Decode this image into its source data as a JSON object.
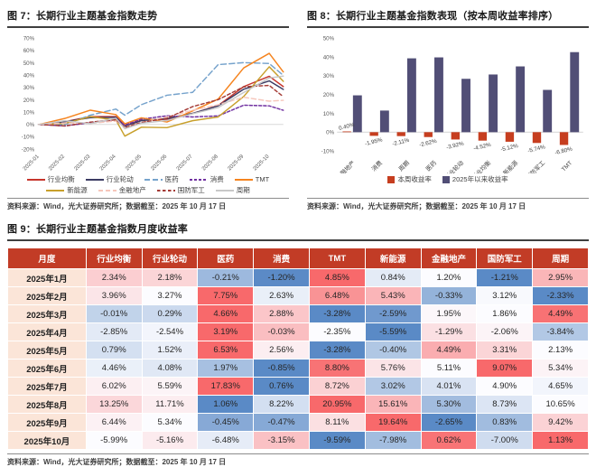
{
  "figure7": {
    "title": "图 7：长期行业主题基金指数走势",
    "source": "资料来源：Wind，光大证券研究所；数据截至：2025 年 10 月 17 日"
  },
  "figure8": {
    "title": "图 8：长期行业主题基金指数表现（按本周收益率排序）",
    "source": "资料来源：Wind，光大证券研究所；数据截至：2025 年 10 月 17 日"
  },
  "figure9": {
    "title": "图 9：长期行业主题基金指数月度收益率",
    "source": "资料来源：Wind，光大证券研究所；数据截至：2025 年 10 月 17 日"
  },
  "colors": {
    "header_red": "#C23C26",
    "month_col_bg": "#FBE5D8",
    "bar_week_red": "#C63E1F",
    "bar_ytd_navy": "#514E76",
    "axis_text": "#595959",
    "zero_line": "#d9d9d9"
  },
  "chart_data": [
    {
      "id": "figure7",
      "type": "line",
      "title": "长期行业主题基金指数走势",
      "ylim": [
        -20,
        70
      ],
      "yticks": [
        70,
        60,
        50,
        40,
        30,
        20,
        10,
        0,
        -10,
        -20
      ],
      "xticklabels": [
        "2025-01",
        "2025-02",
        "2025-03",
        "2025-04",
        "2025-05",
        "2025-06",
        "2025-07",
        "2025-08",
        "2025-09",
        "2025-10"
      ],
      "x": [
        0,
        1,
        2,
        3,
        3.35,
        4,
        5,
        6,
        7,
        8,
        9,
        9.55
      ],
      "series": [
        {
          "name": "行业均衡",
          "color": "#C6352C",
          "dash": "",
          "values": [
            0,
            2.3,
            6.4,
            6.4,
            -1.0,
            3.4,
            4.2,
            8.8,
            15.4,
            30.7,
            39.1,
            30.7
          ]
        },
        {
          "name": "行业轮动",
          "color": "#3B3B63",
          "dash": "",
          "values": [
            0,
            2.2,
            5.5,
            5.8,
            -1.5,
            3.1,
            4.7,
            9.0,
            15.1,
            28.6,
            35.4,
            28.4
          ]
        },
        {
          "name": "医药",
          "color": "#76A3CC",
          "dash": "6 3",
          "values": [
            0,
            -0.2,
            7.5,
            12.5,
            7.5,
            16.1,
            23.7,
            26.1,
            48.6,
            50.2,
            49.5,
            39.8
          ]
        },
        {
          "name": "消费",
          "color": "#7030A0",
          "dash": "3 2",
          "values": [
            0,
            -1.2,
            1.4,
            4.3,
            -0.5,
            4.3,
            7.0,
            6.1,
            6.9,
            15.6,
            15.1,
            11.5
          ]
        },
        {
          "name": "TMT",
          "color": "#F5841F",
          "dash": "",
          "values": [
            0,
            4.9,
            11.6,
            8.0,
            0.5,
            5.4,
            2.0,
            11.0,
            20.6,
            45.9,
            57.7,
            42.6
          ]
        },
        {
          "name": "新能源",
          "color": "#C8A02C",
          "dash": "",
          "values": [
            0,
            0.8,
            6.3,
            3.6,
            -9.5,
            -2.2,
            -2.6,
            3.0,
            6.1,
            22.7,
            46.8,
            35.0
          ]
        },
        {
          "name": "金融地产",
          "color": "#F6C6BB",
          "dash": "5 3",
          "values": [
            0,
            1.2,
            0.9,
            2.8,
            -2.0,
            1.5,
            6.1,
            11.5,
            16.0,
            22.1,
            18.9,
            19.6
          ]
        },
        {
          "name": "国防军工",
          "color": "#A43B36",
          "dash": "3.5 2.5",
          "values": [
            0,
            -1.2,
            1.9,
            3.8,
            -2.5,
            1.6,
            5.0,
            14.5,
            20.1,
            30.6,
            31.7,
            22.5
          ]
        },
        {
          "name": "周期",
          "color": "#C8C8C8",
          "dash": "",
          "values": [
            0,
            3.0,
            0.6,
            5.1,
            -3.5,
            1.0,
            3.2,
            8.7,
            13.7,
            25.9,
            37.7,
            39.3
          ]
        }
      ],
      "legend_rows": [
        [
          "行业均衡",
          "行业轮动",
          "医药",
          "消费",
          "TMT"
        ],
        [
          "新能源",
          "金融地产",
          "国防军工",
          "周期"
        ]
      ]
    },
    {
      "id": "figure8",
      "type": "bar",
      "title": "长期行业主题基金指数表现（按本周收益率排序）",
      "ylim": [
        -10,
        50
      ],
      "yticks": [
        50,
        40,
        30,
        20,
        10,
        0,
        -10
      ],
      "categories": [
        "金融地产",
        "消费",
        "周期",
        "医药",
        "行业轮动",
        "行业均衡",
        "新能源",
        "国防军工",
        "TMT"
      ],
      "series": [
        {
          "name": "本周收益率",
          "color": "#C63E1F",
          "values": [
            0.4,
            -1.95,
            -2.11,
            -2.62,
            -3.92,
            -4.52,
            -5.12,
            -5.74,
            -6.8
          ],
          "labels": [
            "0.40%",
            "-1.95%",
            "-2.11%",
            "-2.62%",
            "-3.92%",
            "-4.52%",
            "-5.12%",
            "-5.74%",
            "-6.80%"
          ]
        },
        {
          "name": "2025年以来收益率",
          "color": "#514E76",
          "values": [
            19.6,
            11.5,
            39.3,
            39.8,
            28.4,
            30.7,
            35.0,
            22.5,
            42.6
          ]
        }
      ],
      "legend_position": "bottom"
    },
    {
      "id": "figure9",
      "type": "table",
      "columns": [
        "月度",
        "行业均衡",
        "行业轮动",
        "医药",
        "消费",
        "TMT",
        "新能源",
        "金融地产",
        "国防军工",
        "周期"
      ],
      "rows": [
        {
          "month": "2025年1月",
          "values": [
            2.34,
            2.18,
            -0.21,
            -1.2,
            4.85,
            0.84,
            1.2,
            -1.21,
            2.95
          ]
        },
        {
          "month": "2025年2月",
          "values": [
            3.96,
            3.27,
            7.75,
            2.63,
            6.48,
            5.43,
            -0.33,
            3.12,
            -2.33
          ]
        },
        {
          "month": "2025年3月",
          "values": [
            -0.01,
            0.29,
            4.66,
            2.88,
            -3.28,
            -2.59,
            1.95,
            1.86,
            4.49
          ]
        },
        {
          "month": "2025年4月",
          "values": [
            -2.85,
            -2.54,
            3.19,
            -0.03,
            -2.35,
            -5.59,
            -1.29,
            -2.06,
            -3.84
          ]
        },
        {
          "month": "2025年5月",
          "values": [
            0.79,
            1.52,
            6.53,
            2.56,
            -3.28,
            -0.4,
            4.49,
            3.31,
            2.13
          ]
        },
        {
          "month": "2025年6月",
          "values": [
            4.46,
            4.08,
            1.97,
            -0.85,
            8.8,
            5.76,
            5.11,
            9.07,
            5.34
          ]
        },
        {
          "month": "2025年7月",
          "values": [
            6.02,
            5.59,
            17.83,
            0.76,
            8.72,
            3.02,
            4.01,
            4.9,
            4.65
          ]
        },
        {
          "month": "2025年8月",
          "values": [
            13.25,
            11.71,
            1.06,
            8.22,
            20.95,
            15.61,
            5.3,
            8.73,
            10.65
          ]
        },
        {
          "month": "2025年9月",
          "values": [
            6.44,
            5.34,
            -0.45,
            -0.47,
            8.11,
            19.64,
            -2.65,
            0.83,
            9.42
          ]
        },
        {
          "month": "2025年10月",
          "values": [
            -5.99,
            -5.16,
            -6.48,
            -3.15,
            -9.59,
            -7.98,
            0.62,
            -7.0,
            1.13
          ]
        }
      ],
      "heat_colors": {
        "low": "#5A8AC6",
        "mid": "#FCFCFF",
        "high": "#F8696B"
      }
    }
  ]
}
